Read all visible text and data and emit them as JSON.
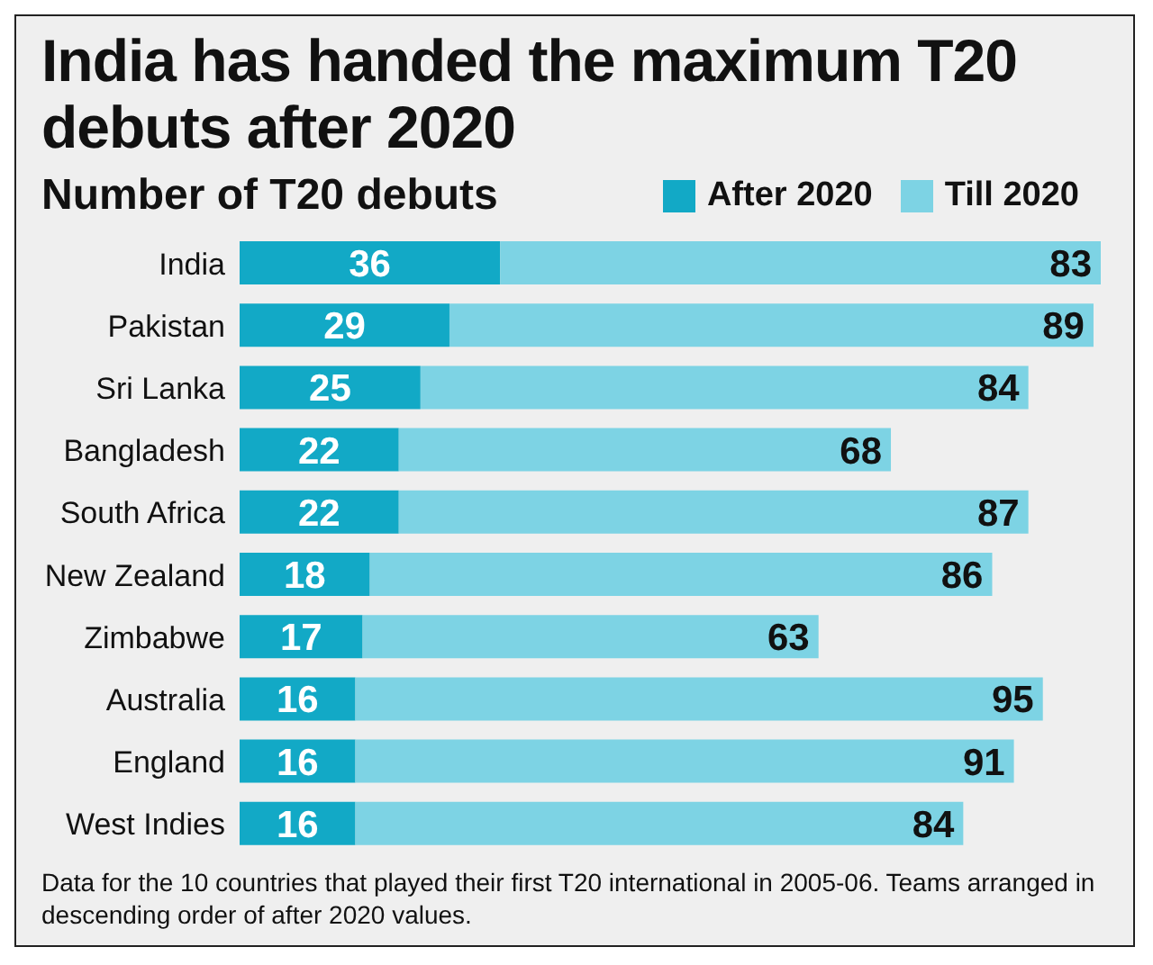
{
  "chart_data": {
    "type": "bar",
    "orientation": "horizontal",
    "stacked": true,
    "title": "India has handed the maximum T20 debuts after 2020",
    "subtitle": "Number of T20 debuts",
    "categories": [
      "India",
      "Pakistan",
      "Sri Lanka",
      "Bangladesh",
      "South Africa",
      "New Zealand",
      "Zimbabwe",
      "Australia",
      "England",
      "West Indies"
    ],
    "series": [
      {
        "name": "After 2020",
        "color": "#12a9c6",
        "values": [
          36,
          29,
          25,
          22,
          22,
          18,
          17,
          16,
          16,
          16
        ]
      },
      {
        "name": "Till 2020",
        "color": "#7dd3e4",
        "values": [
          83,
          89,
          84,
          68,
          87,
          86,
          63,
          95,
          91,
          84
        ]
      }
    ],
    "data_labels": true,
    "legend": "top right",
    "annotations": [
      "Data for the 10 countries that played their first T20 international in 2005-06. Teams arranged in descending order of after 2020 values."
    ]
  }
}
